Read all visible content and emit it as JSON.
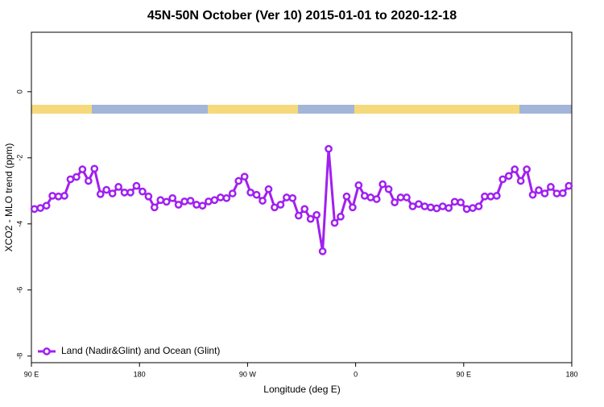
{
  "chart_data": {
    "type": "line",
    "title": "45N-50N October (Ver 10)   2015-01-01 to 2020-12-18",
    "x_label": "Longitude (deg E)",
    "y_label": "XCO2 - MLO trend (ppm)",
    "x": [
      92.5,
      97.5,
      102.5,
      107.5,
      112.5,
      117.5,
      122.5,
      127.5,
      132.5,
      137.5,
      142.5,
      147.5,
      152.5,
      157.5,
      162.5,
      167.5,
      172.5,
      177.5,
      182.5,
      187.5,
      192.5,
      197.5,
      202.5,
      207.5,
      212.5,
      217.5,
      222.5,
      227.5,
      232.5,
      237.5,
      242.5,
      247.5,
      252.5,
      257.5,
      262.5,
      267.5,
      272.5,
      277.5,
      282.5,
      287.5,
      292.5,
      297.5,
      302.5,
      307.5,
      312.5,
      317.5,
      322.5,
      327.5,
      332.5,
      337.5,
      342.5,
      347.5,
      352.5,
      357.5,
      362.5,
      367.5,
      372.5,
      377.5,
      382.5,
      387.5,
      392.5,
      397.5,
      402.5,
      407.5,
      412.5,
      417.5,
      422.5,
      427.5,
      432.5,
      437.5,
      442.5,
      447.5,
      452.5,
      457.5,
      462.5,
      467.5,
      472.5,
      477.5,
      482.5,
      487.5,
      492.5,
      497.5,
      502.5,
      507.5,
      512.5,
      517.5,
      522.5,
      527.5,
      532.5,
      537.5
    ],
    "series": [
      {
        "name": "Land (Nadir&Glint) and Ocean (Glint)",
        "color": "#a020f0",
        "values": [
          -3.55,
          -3.52,
          -3.45,
          -3.15,
          -3.17,
          -3.15,
          -2.65,
          -2.58,
          -2.35,
          -2.7,
          -2.33,
          -3.1,
          -2.97,
          -3.08,
          -2.88,
          -3.05,
          -3.05,
          -2.85,
          -3.02,
          -3.17,
          -3.5,
          -3.28,
          -3.33,
          -3.22,
          -3.42,
          -3.32,
          -3.3,
          -3.42,
          -3.45,
          -3.32,
          -3.28,
          -3.2,
          -3.22,
          -3.08,
          -2.7,
          -2.57,
          -3.05,
          -3.12,
          -3.3,
          -2.95,
          -3.5,
          -3.42,
          -3.2,
          -3.22,
          -3.75,
          -3.55,
          -3.85,
          -3.73,
          -4.83,
          -1.73,
          -3.97,
          -3.78,
          -3.17,
          -3.5,
          -2.83,
          -3.15,
          -3.2,
          -3.25,
          -2.8,
          -2.95,
          -3.35,
          -3.2,
          -3.2,
          -3.47,
          -3.4,
          -3.47,
          -3.5,
          -3.53,
          -3.47,
          -3.52,
          -3.33,
          -3.35,
          -3.55,
          -3.52,
          -3.47,
          -3.17,
          -3.17,
          -3.15,
          -2.65,
          -2.55,
          -2.35,
          -2.7,
          -2.35,
          -3.12,
          -2.98,
          -3.08,
          -2.88,
          -3.08,
          -3.07,
          -2.85
        ]
      }
    ],
    "xlim": [
      90,
      540
    ],
    "xticks": [
      {
        "value": 90,
        "label": "90 E"
      },
      180,
      {
        "value": 270,
        "label": "90 W"
      },
      {
        "value": 360,
        "label": "0"
      },
      {
        "value": 450,
        "label": "90 E"
      },
      {
        "value": 540,
        "label": "180"
      }
    ],
    "ylim": [
      -8.2,
      1.8
    ],
    "yticks": [
      0,
      -2,
      -4,
      -6,
      -8
    ],
    "legend": "bottom-left"
  }
}
